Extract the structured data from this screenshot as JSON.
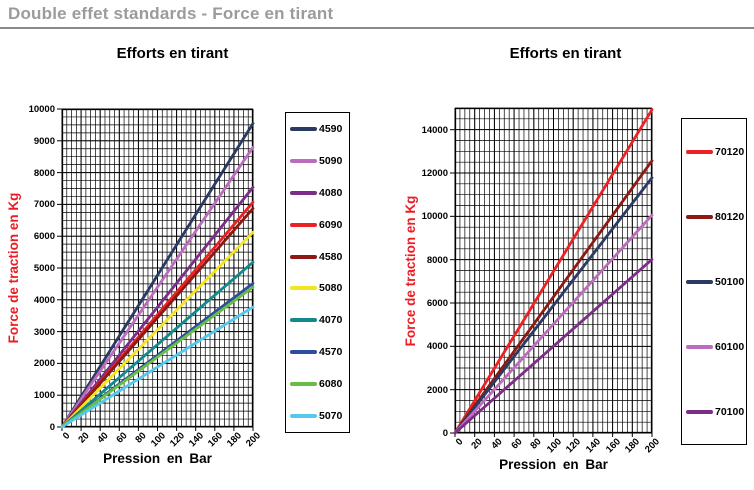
{
  "header": {
    "title": "Double effet standards - Force en tirant"
  },
  "colors": {
    "header_text": "#9b9b9b",
    "header_rule": "#8a8a8a",
    "axis_title_y": "#ed1c24",
    "axis_title_x": "#000000",
    "grid": "#000000",
    "background": "#ffffff"
  },
  "chart_data": [
    {
      "type": "line",
      "title": "Efforts en tirant",
      "xlabel": "Pression en Bar",
      "ylabel": "Force de traction en Kg",
      "xlim": [
        0,
        200
      ],
      "ylim": [
        0,
        10000
      ],
      "x_ticks": [
        0,
        20,
        40,
        60,
        80,
        100,
        120,
        140,
        160,
        180,
        200
      ],
      "y_ticks": [
        0,
        1000,
        2000,
        3000,
        4000,
        5000,
        6000,
        7000,
        8000,
        9000,
        10000
      ],
      "x_minor_step": 5,
      "y_minor_step": 250,
      "grid": true,
      "legend_position": "right",
      "x": [
        0,
        200
      ],
      "series": [
        {
          "name": "4590",
          "color": "#2b3a62",
          "values": [
            0,
            9546
          ]
        },
        {
          "name": "5090",
          "color": "#bd6cbd",
          "values": [
            0,
            8796
          ]
        },
        {
          "name": "4080",
          "color": "#7c2d88",
          "values": [
            0,
            7540
          ]
        },
        {
          "name": "6090",
          "color": "#ed2024",
          "values": [
            0,
            7069
          ]
        },
        {
          "name": "4580",
          "color": "#8c1a12",
          "values": [
            0,
            6872
          ]
        },
        {
          "name": "5080",
          "color": "#f4e520",
          "values": [
            0,
            6126
          ]
        },
        {
          "name": "4070",
          "color": "#12898c",
          "values": [
            0,
            5184
          ]
        },
        {
          "name": "4570",
          "color": "#2c4ea0",
          "values": [
            0,
            4516
          ]
        },
        {
          "name": "6080",
          "color": "#68bd44",
          "values": [
            0,
            4398
          ]
        },
        {
          "name": "5070",
          "color": "#55c8f0",
          "values": [
            0,
            3770
          ]
        }
      ]
    },
    {
      "type": "line",
      "title": "Efforts en tirant",
      "xlabel": "Pression en Bar",
      "ylabel": "Force de traction en Kg",
      "xlim": [
        0,
        200
      ],
      "ylim": [
        0,
        15000
      ],
      "x_ticks": [
        0,
        20,
        40,
        60,
        80,
        100,
        120,
        140,
        160,
        180,
        200
      ],
      "y_ticks": [
        0,
        2000,
        4000,
        6000,
        8000,
        10000,
        12000,
        14000
      ],
      "x_minor_step": 5,
      "y_minor_step": 500,
      "grid": true,
      "legend_position": "right",
      "x": [
        0,
        200
      ],
      "series": [
        {
          "name": "70120",
          "color": "#ed2024",
          "values": [
            0,
            14923
          ]
        },
        {
          "name": "80120",
          "color": "#8c1a12",
          "values": [
            0,
            12566
          ]
        },
        {
          "name": "50100",
          "color": "#2b3a62",
          "values": [
            0,
            11781
          ]
        },
        {
          "name": "60100",
          "color": "#bd6cbd",
          "values": [
            0,
            10053
          ]
        },
        {
          "name": "70100",
          "color": "#7c2d88",
          "values": [
            0,
            8011
          ]
        }
      ]
    }
  ]
}
